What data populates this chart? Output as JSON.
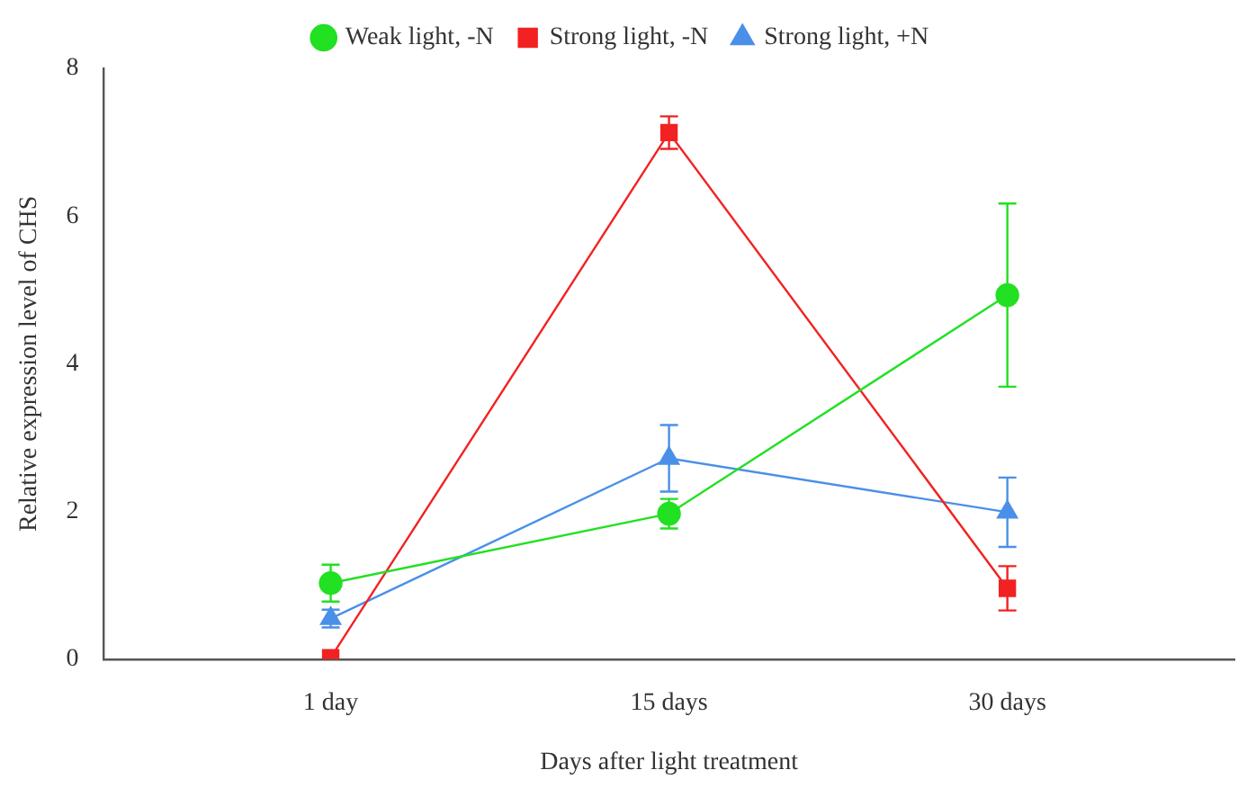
{
  "chart_data": {
    "type": "line",
    "xlabel": "Days after light treatment",
    "ylabel": "Relative expression level of CHS",
    "categories": [
      "1 day",
      "15 days",
      "30 days"
    ],
    "series": [
      {
        "name": "Weak light, -N",
        "color": "#22e022",
        "marker": "circle",
        "values": [
          1.03,
          1.97,
          4.93
        ],
        "errors": [
          0.25,
          0.2,
          1.24
        ]
      },
      {
        "name": "Strong light, -N",
        "color": "#f22222",
        "marker": "square",
        "values": [
          0.02,
          7.13,
          0.96
        ],
        "errors": [
          null,
          0.22,
          0.3
        ]
      },
      {
        "name": "Strong light, +N",
        "color": "#4a90e8",
        "marker": "triangle",
        "values": [
          0.55,
          2.72,
          1.99
        ],
        "errors": [
          0.12,
          0.45,
          0.47
        ]
      }
    ],
    "ylim": [
      0,
      8
    ],
    "yticks": [
      0,
      2,
      4,
      6,
      8
    ],
    "grid": false,
    "legend": "top"
  }
}
